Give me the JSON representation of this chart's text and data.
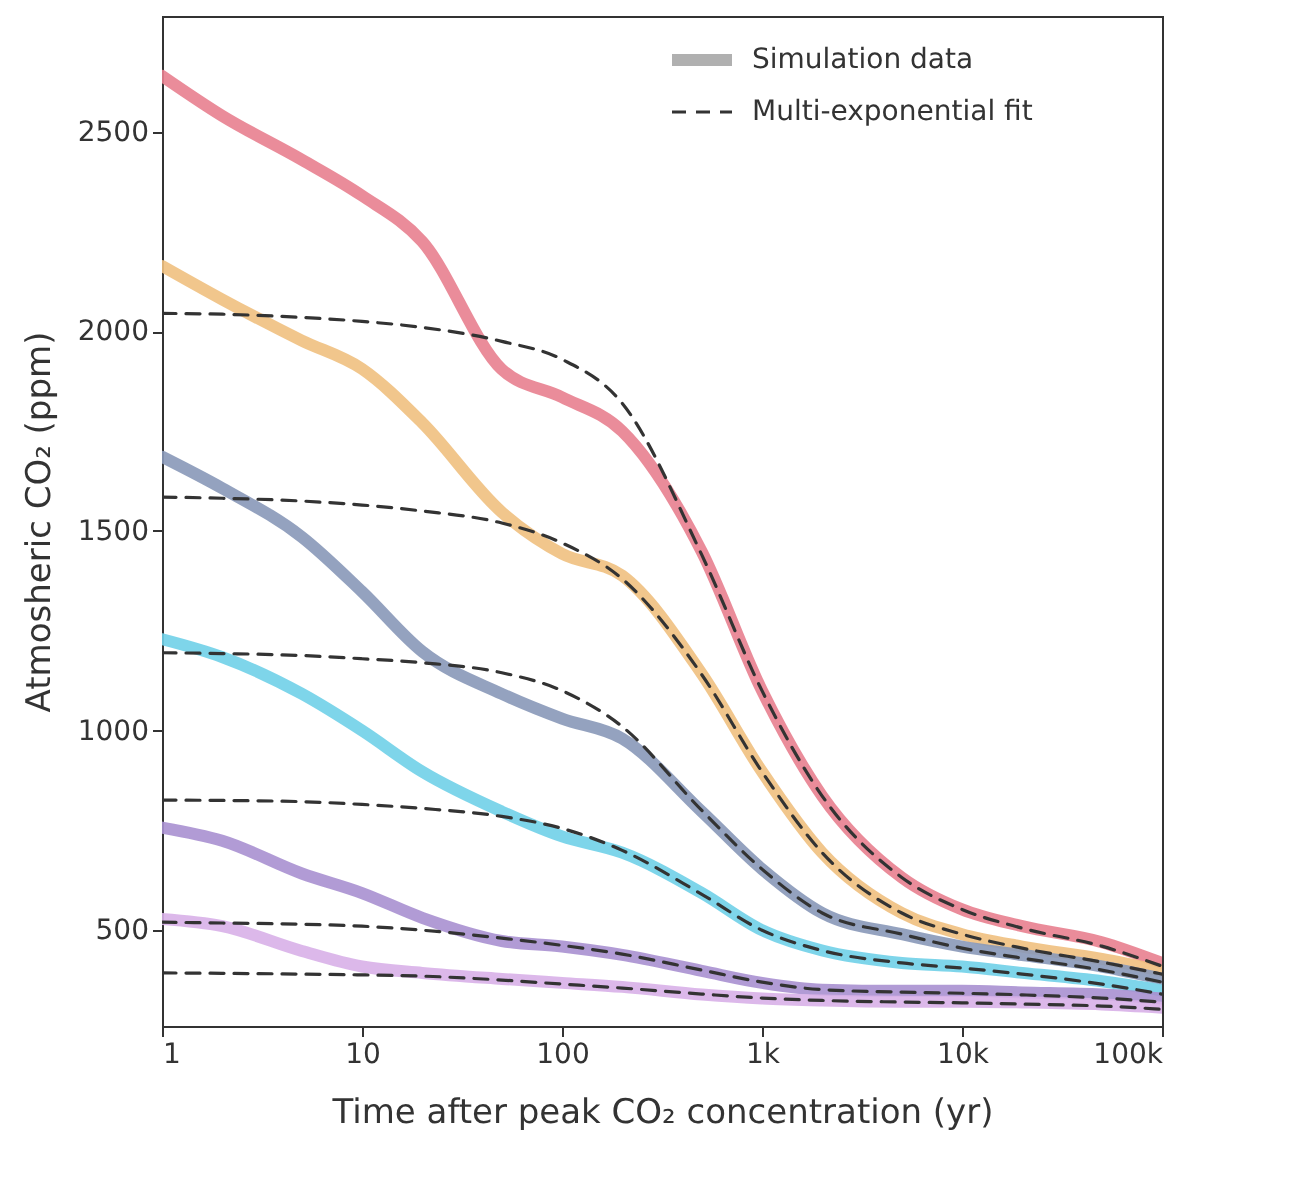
{
  "chart_data": {
    "type": "line",
    "xlabel": "Time after peak CO₂ concentration (yr)",
    "ylabel": "Atmosheric CO₂ (ppm)",
    "x": [
      1,
      2,
      5,
      10,
      20,
      50,
      100,
      200,
      500,
      1000,
      2000,
      5000,
      10000,
      20000,
      50000,
      100000
    ],
    "log": "x",
    "xlim": [
      1,
      100000
    ],
    "xticks": [
      1,
      10,
      100,
      {
        "value": 1000,
        "label": "1k"
      },
      {
        "value": 10000,
        "label": "10k"
      },
      {
        "value": 100000,
        "label": "100k"
      }
    ],
    "ylim": [
      260,
      2790
    ],
    "yticks": [
      500,
      1000,
      1500,
      2000,
      2500
    ],
    "grid": false,
    "legend": "top right",
    "series": [
      {
        "name": "Simulation data",
        "color": "#b0b0b0",
        "values": [
          null,
          null,
          null,
          null,
          null,
          null,
          null,
          null,
          null,
          null,
          null,
          null,
          null,
          null,
          null,
          null
        ]
      },
      {
        "color": "#e8808f",
        "values": [
          2640,
          2540,
          2430,
          2340,
          2225,
          1905,
          1835,
          1750,
          1448,
          1100,
          836,
          632,
          552,
          510,
          470,
          418
        ]
      },
      {
        "color": "#f0c080",
        "values": [
          2164,
          2080,
          1977,
          1906,
          1771,
          1547,
          1443,
          1388,
          1142,
          897,
          694,
          543,
          490,
          459,
          428,
          398
        ]
      },
      {
        "color": "#8898b8",
        "values": [
          1686,
          1607,
          1485,
          1348,
          1198,
          1092,
          1030,
          980,
          797,
          653,
          543,
          490,
          459,
          438,
          409,
          378
        ]
      },
      {
        "color": "#70d0e8",
        "values": [
          1229,
          1184,
          1092,
          1000,
          897,
          797,
          735,
          694,
          593,
          500,
          449,
          418,
          409,
          393,
          372,
          349
        ]
      },
      {
        "color": "#a890d0",
        "values": [
          757,
          724,
          642,
          593,
          531,
          473,
          459,
          438,
          398,
          368,
          351,
          348,
          348,
          344,
          339,
          329
        ]
      },
      {
        "color": "#d8b0e8",
        "values": [
          528,
          510,
          448,
          409,
          393,
          378,
          368,
          358,
          339,
          329,
          324,
          321,
          321,
          319,
          314,
          306
        ]
      },
      {
        "name": "Multi-exponential fit",
        "color": "#333333",
        "line_style": "dashed",
        "values": [
          2045,
          2043,
          2035,
          2025,
          2010,
          1975,
          1930,
          1820,
          1440,
          1100,
          836,
          632,
          552,
          505,
          460,
          410
        ]
      },
      {
        "color": "#333333",
        "line_style": "dashed",
        "values": [
          1585,
          1582,
          1575,
          1565,
          1550,
          1520,
          1470,
          1380,
          1140,
          897,
          694,
          543,
          490,
          455,
          420,
          390
        ]
      },
      {
        "color": "#333333",
        "line_style": "dashed",
        "values": [
          1195,
          1193,
          1188,
          1180,
          1170,
          1145,
          1100,
          1010,
          800,
          653,
          543,
          490,
          455,
          430,
          400,
          370
        ]
      },
      {
        "color": "#333333",
        "line_style": "dashed",
        "values": [
          826,
          825,
          822,
          815,
          805,
          785,
          755,
          700,
          590,
          500,
          449,
          418,
          405,
          390,
          365,
          340
        ]
      },
      {
        "color": "#333333",
        "line_style": "dashed",
        "values": [
          520,
          518,
          515,
          510,
          500,
          480,
          462,
          440,
          400,
          370,
          351,
          345,
          342,
          338,
          330,
          320
        ]
      },
      {
        "color": "#333333",
        "line_style": "dashed",
        "values": [
          393,
          392,
          390,
          388,
          385,
          375,
          365,
          355,
          340,
          330,
          324,
          320,
          318,
          315,
          310,
          302
        ]
      }
    ]
  }
}
